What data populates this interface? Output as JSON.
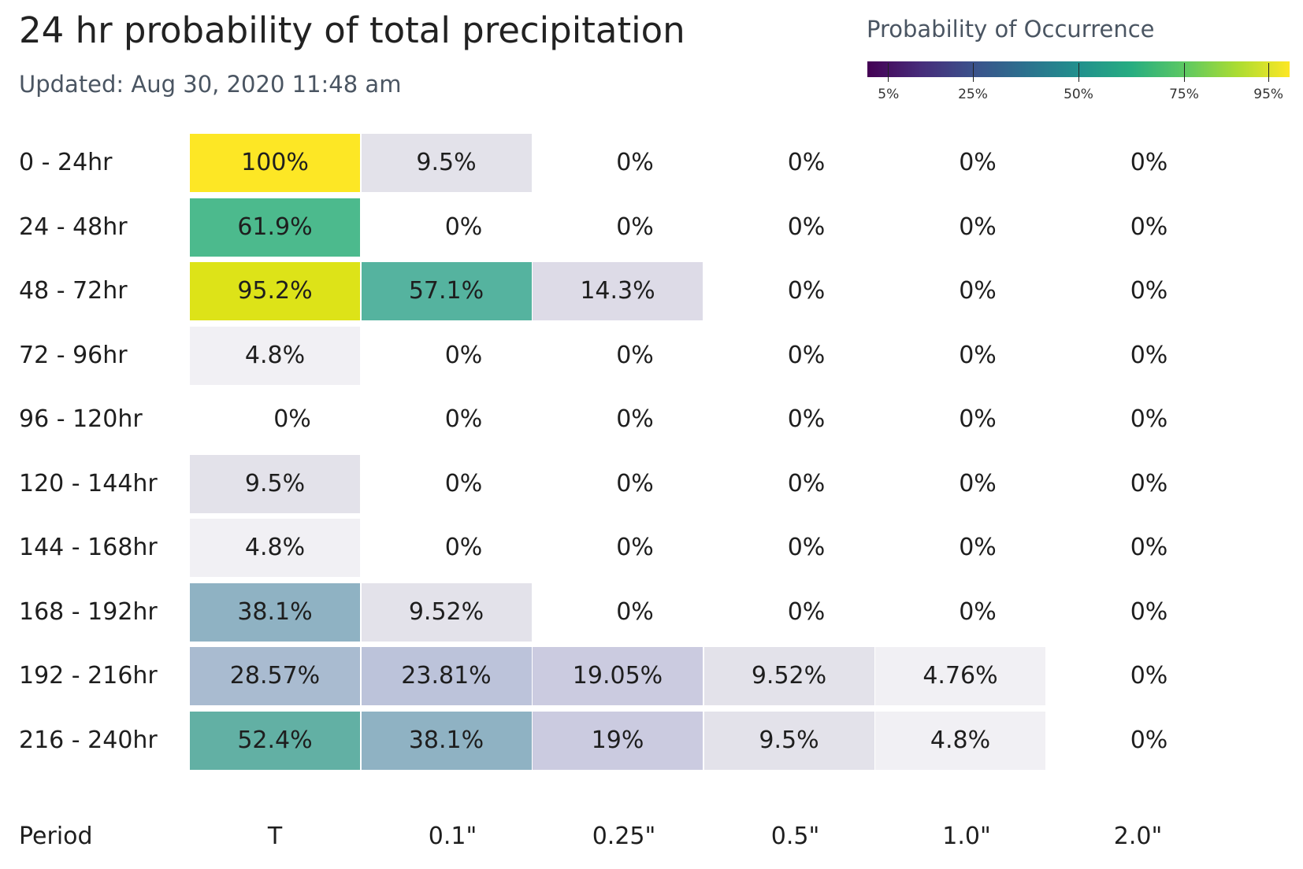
{
  "title": "24 hr probability of total precipitation",
  "updated": "Updated: Aug 30, 2020 11:48 am",
  "legend": {
    "title": "Probability of Occurrence",
    "ticks": [
      {
        "label": "5%",
        "value": 5
      },
      {
        "label": "25%",
        "value": 25
      },
      {
        "label": "50%",
        "value": 50
      },
      {
        "label": "75%",
        "value": 75
      },
      {
        "label": "95%",
        "value": 95
      }
    ]
  },
  "chart_data": {
    "type": "heatmap",
    "title": "24 hr probability of total precipitation",
    "row_axis_label": "Period",
    "rows": [
      "0 - 24hr",
      "24 - 48hr",
      "48 - 72hr",
      "72 - 96hr",
      "96 - 120hr",
      "120 - 144hr",
      "144 - 168hr",
      "168 - 192hr",
      "192 - 216hr",
      "216 - 240hr"
    ],
    "columns": [
      "T",
      "0.1\"",
      "0.25\"",
      "0.5\"",
      "1.0\"",
      "2.0\""
    ],
    "values": [
      [
        100,
        9.5,
        0,
        0,
        0,
        0
      ],
      [
        61.9,
        0,
        0,
        0,
        0,
        0
      ],
      [
        95.2,
        57.1,
        14.3,
        0,
        0,
        0
      ],
      [
        4.8,
        0,
        0,
        0,
        0,
        0
      ],
      [
        0,
        0,
        0,
        0,
        0,
        0
      ],
      [
        9.5,
        0,
        0,
        0,
        0,
        0
      ],
      [
        4.8,
        0,
        0,
        0,
        0,
        0
      ],
      [
        38.1,
        9.52,
        0,
        0,
        0,
        0
      ],
      [
        28.57,
        23.81,
        19.05,
        9.52,
        4.76,
        0
      ],
      [
        52.4,
        38.1,
        19,
        9.5,
        4.8,
        0
      ]
    ],
    "labels": [
      [
        "100%",
        "9.5%",
        "0%",
        "0%",
        "0%",
        "0%"
      ],
      [
        "61.9%",
        "0%",
        "0%",
        "0%",
        "0%",
        "0%"
      ],
      [
        "95.2%",
        "57.1%",
        "14.3%",
        "0%",
        "0%",
        "0%"
      ],
      [
        "4.8%",
        "0%",
        "0%",
        "0%",
        "0%",
        "0%"
      ],
      [
        "0%",
        "0%",
        "0%",
        "0%",
        "0%",
        "0%"
      ],
      [
        "9.5%",
        "0%",
        "0%",
        "0%",
        "0%",
        "0%"
      ],
      [
        "4.8%",
        "0%",
        "0%",
        "0%",
        "0%",
        "0%"
      ],
      [
        "38.1%",
        "9.52%",
        "0%",
        "0%",
        "0%",
        "0%"
      ],
      [
        "28.57%",
        "23.81%",
        "19.05%",
        "9.52%",
        "4.76%",
        "0%"
      ],
      [
        "52.4%",
        "38.1%",
        "19%",
        "9.5%",
        "4.8%",
        "0%"
      ]
    ],
    "colors": [
      [
        "#fde725",
        "#e3e2ea",
        "",
        "",
        "",
        ""
      ],
      [
        "#4cba8d",
        "",
        "",
        "",
        "",
        ""
      ],
      [
        "#dde318",
        "#55b39f",
        "#dddbe7",
        "",
        "",
        ""
      ],
      [
        "#f1f0f4",
        "",
        "",
        "",
        "",
        ""
      ],
      [
        "",
        "",
        "",
        "",
        "",
        ""
      ],
      [
        "#e3e2ea",
        "",
        "",
        "",
        "",
        ""
      ],
      [
        "#f1f0f4",
        "",
        "",
        "",
        "",
        ""
      ],
      [
        "#8fb2c3",
        "#e3e2ea",
        "",
        "",
        "",
        ""
      ],
      [
        "#a9bbd0",
        "#bcc3da",
        "#cbcbe0",
        "#e3e2ea",
        "#f1f0f4",
        ""
      ],
      [
        "#62b0a4",
        "#8fb2c3",
        "#cbcbe0",
        "#e3e2ea",
        "#f1f0f4",
        ""
      ]
    ],
    "legend_scale": "viridis",
    "legend_range": [
      0,
      100
    ]
  }
}
